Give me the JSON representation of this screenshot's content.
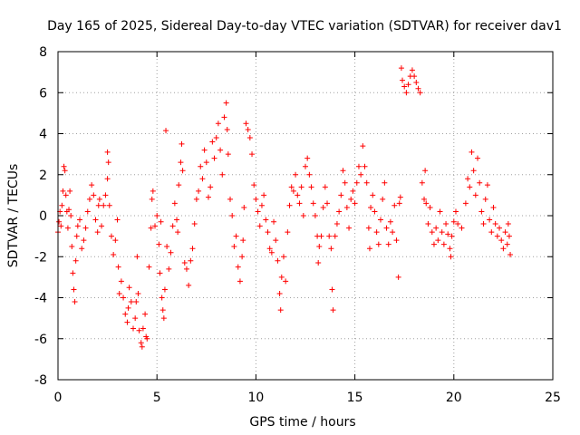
{
  "chart_data": {
    "type": "scatter",
    "title": "Day 165 of 2025, Sidereal Day-to-day VTEC variation (SDTVAR) for receiver dav1",
    "xlabel": "GPS time / hours",
    "ylabel": "SDTVAR / TECUs",
    "xlim": [
      0,
      25
    ],
    "ylim": [
      -8,
      8
    ],
    "x_ticks": [
      0,
      5,
      10,
      15,
      20,
      25
    ],
    "y_ticks": [
      -8,
      -6,
      -4,
      -2,
      0,
      2,
      4,
      6,
      8
    ],
    "x_tick_labels": [
      "0",
      "5",
      "10",
      "15",
      "20",
      "25"
    ],
    "y_tick_labels": [
      "-8",
      "-6",
      "-4",
      "-2",
      "0",
      "2",
      "4",
      "6",
      "8"
    ],
    "grid": true,
    "marker": "+",
    "color": "#ff0000",
    "series": [
      {
        "name": "SDTVAR",
        "points": [
          [
            0.0,
            -0.8
          ],
          [
            0.05,
            -0.3
          ],
          [
            0.1,
            0.2
          ],
          [
            0.15,
            -0.5
          ],
          [
            0.2,
            0.5
          ],
          [
            0.25,
            1.2
          ],
          [
            0.3,
            2.4
          ],
          [
            0.35,
            2.2
          ],
          [
            0.4,
            1.0
          ],
          [
            0.45,
            0.2
          ],
          [
            0.5,
            -0.6
          ],
          [
            0.55,
            0.3
          ],
          [
            0.6,
            1.2
          ],
          [
            0.65,
            0.0
          ],
          [
            0.7,
            -1.5
          ],
          [
            0.75,
            -2.8
          ],
          [
            0.8,
            -3.6
          ],
          [
            0.85,
            -4.2
          ],
          [
            0.9,
            -2.2
          ],
          [
            0.95,
            -1.0
          ],
          [
            1.0,
            -0.5
          ],
          [
            1.1,
            -0.2
          ],
          [
            1.2,
            -1.6
          ],
          [
            1.3,
            -1.2
          ],
          [
            1.4,
            -0.6
          ],
          [
            1.5,
            0.2
          ],
          [
            1.6,
            0.8
          ],
          [
            1.7,
            1.5
          ],
          [
            1.8,
            1.0
          ],
          [
            1.9,
            -0.2
          ],
          [
            2.0,
            -0.8
          ],
          [
            2.05,
            0.5
          ],
          [
            2.1,
            0.8
          ],
          [
            2.2,
            -0.5
          ],
          [
            2.3,
            0.5
          ],
          [
            2.4,
            1.0
          ],
          [
            2.5,
            1.8
          ],
          [
            2.5,
            3.1
          ],
          [
            2.55,
            2.6
          ],
          [
            2.6,
            0.5
          ],
          [
            2.7,
            -1.0
          ],
          [
            2.8,
            -1.9
          ],
          [
            2.9,
            -1.2
          ],
          [
            3.0,
            -0.2
          ],
          [
            3.05,
            -2.5
          ],
          [
            3.1,
            -3.8
          ],
          [
            3.2,
            -3.2
          ],
          [
            3.3,
            -4.0
          ],
          [
            3.4,
            -4.8
          ],
          [
            3.5,
            -5.2
          ],
          [
            3.55,
            -4.5
          ],
          [
            3.6,
            -3.5
          ],
          [
            3.7,
            -4.2
          ],
          [
            3.8,
            -5.5
          ],
          [
            3.9,
            -5.0
          ],
          [
            3.95,
            -4.2
          ],
          [
            4.0,
            -2.0
          ],
          [
            4.05,
            -3.8
          ],
          [
            4.1,
            -5.6
          ],
          [
            4.2,
            -6.2
          ],
          [
            4.25,
            -6.4
          ],
          [
            4.3,
            -5.5
          ],
          [
            4.4,
            -4.8
          ],
          [
            4.45,
            -5.9
          ],
          [
            4.5,
            -6.0
          ],
          [
            4.6,
            -2.5
          ],
          [
            4.7,
            -0.6
          ],
          [
            4.75,
            0.8
          ],
          [
            4.8,
            1.2
          ],
          [
            4.9,
            -0.5
          ],
          [
            5.0,
            0.0
          ],
          [
            5.1,
            -1.4
          ],
          [
            5.15,
            -2.8
          ],
          [
            5.2,
            -0.3
          ],
          [
            5.25,
            -4.0
          ],
          [
            5.3,
            -4.6
          ],
          [
            5.35,
            -5.0
          ],
          [
            5.4,
            -3.6
          ],
          [
            5.45,
            4.15
          ],
          [
            5.5,
            -1.5
          ],
          [
            5.6,
            -2.6
          ],
          [
            5.7,
            -1.8
          ],
          [
            5.8,
            -0.5
          ],
          [
            5.9,
            0.6
          ],
          [
            6.0,
            -0.2
          ],
          [
            6.05,
            -0.8
          ],
          [
            6.1,
            1.5
          ],
          [
            6.2,
            2.6
          ],
          [
            6.25,
            3.5
          ],
          [
            6.3,
            2.2
          ],
          [
            6.4,
            -2.3
          ],
          [
            6.5,
            -2.6
          ],
          [
            6.6,
            -3.4
          ],
          [
            6.7,
            -2.2
          ],
          [
            6.8,
            -1.6
          ],
          [
            6.9,
            -0.4
          ],
          [
            7.0,
            0.8
          ],
          [
            7.1,
            1.2
          ],
          [
            7.2,
            2.4
          ],
          [
            7.3,
            1.8
          ],
          [
            7.4,
            3.2
          ],
          [
            7.5,
            2.6
          ],
          [
            7.6,
            0.9
          ],
          [
            7.7,
            1.4
          ],
          [
            7.8,
            3.6
          ],
          [
            7.9,
            2.8
          ],
          [
            8.0,
            3.8
          ],
          [
            8.1,
            4.5
          ],
          [
            8.2,
            3.2
          ],
          [
            8.3,
            2.0
          ],
          [
            8.4,
            4.8
          ],
          [
            8.5,
            5.5
          ],
          [
            8.55,
            4.2
          ],
          [
            8.6,
            3.0
          ],
          [
            8.7,
            0.8
          ],
          [
            8.8,
            0.0
          ],
          [
            8.9,
            -1.5
          ],
          [
            9.0,
            -1.0
          ],
          [
            9.1,
            -2.5
          ],
          [
            9.2,
            -3.2
          ],
          [
            9.3,
            -2.0
          ],
          [
            9.35,
            -1.2
          ],
          [
            9.4,
            0.4
          ],
          [
            9.5,
            4.5
          ],
          [
            9.6,
            4.2
          ],
          [
            9.7,
            3.8
          ],
          [
            9.8,
            3.0
          ],
          [
            9.9,
            1.5
          ],
          [
            10.0,
            0.8
          ],
          [
            10.1,
            0.2
          ],
          [
            10.2,
            -0.5
          ],
          [
            10.3,
            0.5
          ],
          [
            10.4,
            1.0
          ],
          [
            10.5,
            -0.2
          ],
          [
            10.6,
            -0.8
          ],
          [
            10.7,
            -1.6
          ],
          [
            10.8,
            -1.8
          ],
          [
            10.9,
            -0.3
          ],
          [
            11.0,
            -1.2
          ],
          [
            11.1,
            -2.2
          ],
          [
            11.2,
            -3.8
          ],
          [
            11.25,
            -4.6
          ],
          [
            11.3,
            -3.0
          ],
          [
            11.4,
            -2.0
          ],
          [
            11.5,
            -3.2
          ],
          [
            11.6,
            -0.8
          ],
          [
            11.7,
            0.5
          ],
          [
            11.8,
            1.4
          ],
          [
            11.9,
            1.2
          ],
          [
            12.0,
            2.0
          ],
          [
            12.1,
            1.0
          ],
          [
            12.2,
            0.6
          ],
          [
            12.3,
            1.4
          ],
          [
            12.4,
            0.0
          ],
          [
            12.5,
            2.4
          ],
          [
            12.6,
            2.8
          ],
          [
            12.7,
            2.0
          ],
          [
            12.8,
            1.4
          ],
          [
            12.9,
            0.6
          ],
          [
            13.0,
            0.0
          ],
          [
            13.1,
            -1.0
          ],
          [
            13.15,
            -2.3
          ],
          [
            13.2,
            -1.5
          ],
          [
            13.3,
            -1.0
          ],
          [
            13.4,
            0.4
          ],
          [
            13.5,
            1.4
          ],
          [
            13.6,
            0.6
          ],
          [
            13.7,
            -1.0
          ],
          [
            13.8,
            -1.6
          ],
          [
            13.85,
            -3.6
          ],
          [
            13.9,
            -4.6
          ],
          [
            14.0,
            -1.0
          ],
          [
            14.1,
            -0.4
          ],
          [
            14.2,
            0.2
          ],
          [
            14.3,
            1.0
          ],
          [
            14.4,
            2.2
          ],
          [
            14.5,
            1.6
          ],
          [
            14.6,
            0.4
          ],
          [
            14.7,
            -0.6
          ],
          [
            14.8,
            0.8
          ],
          [
            14.9,
            1.2
          ],
          [
            15.0,
            0.6
          ],
          [
            15.1,
            1.6
          ],
          [
            15.2,
            2.4
          ],
          [
            15.3,
            2.0
          ],
          [
            15.4,
            3.4
          ],
          [
            15.5,
            2.4
          ],
          [
            15.6,
            1.6
          ],
          [
            15.7,
            -0.6
          ],
          [
            15.75,
            -1.6
          ],
          [
            15.8,
            0.4
          ],
          [
            15.9,
            1.0
          ],
          [
            16.0,
            0.2
          ],
          [
            16.1,
            -0.8
          ],
          [
            16.2,
            -1.4
          ],
          [
            16.3,
            -0.2
          ],
          [
            16.4,
            0.8
          ],
          [
            16.5,
            1.6
          ],
          [
            16.6,
            -0.6
          ],
          [
            16.7,
            -1.4
          ],
          [
            16.8,
            -0.3
          ],
          [
            16.9,
            -0.8
          ],
          [
            17.0,
            0.5
          ],
          [
            17.1,
            -1.2
          ],
          [
            17.2,
            -3.0
          ],
          [
            17.25,
            0.6
          ],
          [
            17.3,
            0.9
          ],
          [
            17.35,
            7.2
          ],
          [
            17.4,
            6.6
          ],
          [
            17.5,
            6.3
          ],
          [
            17.6,
            6.0
          ],
          [
            17.7,
            6.4
          ],
          [
            17.8,
            6.8
          ],
          [
            17.9,
            7.1
          ],
          [
            18.0,
            6.8
          ],
          [
            18.1,
            6.5
          ],
          [
            18.2,
            6.2
          ],
          [
            18.3,
            6.0
          ],
          [
            18.4,
            1.6
          ],
          [
            18.5,
            0.8
          ],
          [
            18.55,
            2.2
          ],
          [
            18.6,
            0.6
          ],
          [
            18.7,
            -0.4
          ],
          [
            18.8,
            0.4
          ],
          [
            18.9,
            -0.8
          ],
          [
            19.0,
            -1.4
          ],
          [
            19.1,
            -0.6
          ],
          [
            19.2,
            -1.2
          ],
          [
            19.3,
            0.2
          ],
          [
            19.4,
            -0.8
          ],
          [
            19.5,
            -1.4
          ],
          [
            19.6,
            -0.4
          ],
          [
            19.7,
            -0.9
          ],
          [
            19.8,
            -1.6
          ],
          [
            19.85,
            -2.0
          ],
          [
            19.9,
            -1.0
          ],
          [
            20.0,
            -0.3
          ],
          [
            20.1,
            0.2
          ],
          [
            20.2,
            -0.4
          ],
          [
            20.4,
            -0.6
          ],
          [
            20.6,
            0.6
          ],
          [
            20.7,
            1.8
          ],
          [
            20.8,
            1.4
          ],
          [
            20.9,
            3.1
          ],
          [
            21.0,
            2.2
          ],
          [
            21.1,
            1.0
          ],
          [
            21.2,
            2.8
          ],
          [
            21.3,
            1.6
          ],
          [
            21.4,
            0.2
          ],
          [
            21.5,
            -0.4
          ],
          [
            21.6,
            0.8
          ],
          [
            21.7,
            1.5
          ],
          [
            21.8,
            -0.2
          ],
          [
            21.9,
            -0.8
          ],
          [
            22.0,
            0.4
          ],
          [
            22.1,
            -0.4
          ],
          [
            22.2,
            -1.0
          ],
          [
            22.3,
            -0.6
          ],
          [
            22.4,
            -1.2
          ],
          [
            22.5,
            -1.6
          ],
          [
            22.6,
            -0.8
          ],
          [
            22.7,
            -1.4
          ],
          [
            22.75,
            -0.4
          ],
          [
            22.8,
            -1.0
          ],
          [
            22.85,
            -1.9
          ]
        ]
      }
    ]
  }
}
